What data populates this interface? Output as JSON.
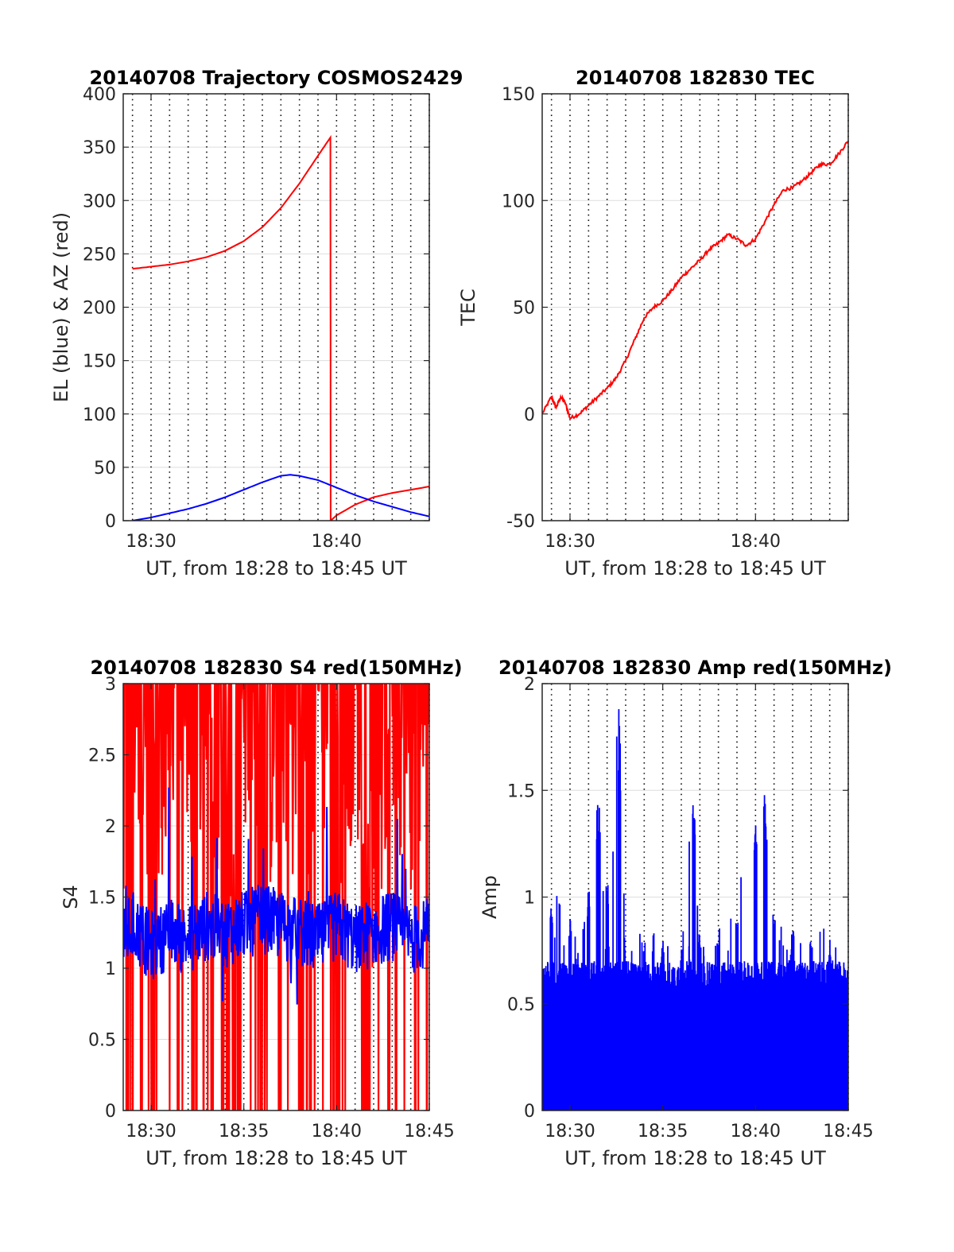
{
  "chart_data": [
    {
      "type": "line",
      "title": "20140708 Trajectory COSMOS2429",
      "xlabel": "UT, from 18:28 to 18:45 UT",
      "ylabel": "EL (blue) & AZ (red)",
      "xlim": [
        "18:28:30",
        "18:45:00"
      ],
      "ylim": [
        0,
        400
      ],
      "xticks": [
        "18:30",
        "18:40"
      ],
      "yticks": [
        0,
        50,
        100,
        150,
        200,
        250,
        300,
        350,
        400
      ],
      "grid": "dotted vertical lines every minute; horizontal lines at y ticks",
      "series": [
        {
          "color": "#ff0000",
          "x": [
            "18:29:00",
            "18:30:00",
            "18:31:00",
            "18:32:00",
            "18:33:00",
            "18:34:00",
            "18:35:00",
            "18:36:00",
            "18:37:00",
            "18:38:00",
            "18:39:00",
            "18:39:40",
            "18:39:41",
            "18:40:00",
            "18:41:00",
            "18:42:00",
            "18:43:00",
            "18:44:00",
            "18:45:00"
          ],
          "values": [
            236,
            238,
            240,
            243,
            247,
            253,
            262,
            275,
            293,
            316,
            342,
            359,
            0,
            5,
            15,
            22,
            26,
            29,
            32
          ]
        },
        {
          "color": "#0000ff",
          "x": [
            "18:29:00",
            "18:30:00",
            "18:31:00",
            "18:32:00",
            "18:33:00",
            "18:34:00",
            "18:35:00",
            "18:36:00",
            "18:37:00",
            "18:37:30",
            "18:38:00",
            "18:39:00",
            "18:40:00",
            "18:41:00",
            "18:42:00",
            "18:43:00",
            "18:44:00",
            "18:45:00"
          ],
          "values": [
            0,
            3,
            7,
            11,
            16,
            22,
            29,
            36,
            42,
            43,
            42,
            38,
            31,
            24,
            18,
            13,
            8,
            4
          ]
        }
      ]
    },
    {
      "type": "line",
      "title": "20140708 182830 TEC",
      "xlabel": "UT, from 18:28 to 18:45 UT",
      "ylabel": "TEC",
      "xlim": [
        "18:28:30",
        "18:45:00"
      ],
      "ylim": [
        -50,
        150
      ],
      "xticks": [
        "18:30",
        "18:40"
      ],
      "yticks": [
        -50,
        0,
        50,
        100,
        150
      ],
      "grid": "dotted vertical lines every minute; horizontal lines at y ticks",
      "series": [
        {
          "color": "#ff0000",
          "x": [
            "18:28:30",
            "18:29:00",
            "18:29:15",
            "18:29:30",
            "18:29:45",
            "18:30:00",
            "18:30:30",
            "18:31:00",
            "18:31:30",
            "18:32:00",
            "18:32:30",
            "18:33:00",
            "18:33:30",
            "18:34:00",
            "18:34:30",
            "18:35:00",
            "18:35:30",
            "18:36:00",
            "18:36:30",
            "18:37:00",
            "18:37:30",
            "18:38:00",
            "18:38:30",
            "18:39:00",
            "18:39:30",
            "18:40:00",
            "18:40:30",
            "18:41:00",
            "18:41:30",
            "18:42:00",
            "18:42:30",
            "18:43:00",
            "18:43:30",
            "18:44:00",
            "18:44:30",
            "18:45:00"
          ],
          "values": [
            0,
            8,
            3,
            8,
            5,
            -2,
            0,
            4,
            8,
            12,
            17,
            25,
            35,
            45,
            50,
            53,
            58,
            64,
            68,
            72,
            77,
            80,
            84,
            82,
            79,
            82,
            90,
            98,
            105,
            106,
            109,
            113,
            117,
            117,
            122,
            128
          ]
        }
      ]
    },
    {
      "type": "line",
      "title": "20140708 182830 S4 red(150MHz)",
      "xlabel": "UT, from 18:28 to 18:45 UT",
      "ylabel": "S4",
      "xlim": [
        "18:28:30",
        "18:45:00"
      ],
      "ylim": [
        0,
        3
      ],
      "xticks": [
        "18:30",
        "18:35",
        "18:40",
        "18:45"
      ],
      "yticks": [
        0,
        0.5,
        1,
        1.5,
        2,
        2.5,
        3
      ],
      "grid": "dotted vertical lines every minute; horizontal lines at y ticks",
      "series": [
        {
          "color": "#ff0000",
          "description_values": "dense noisy trace spanning 0 to above 3",
          "x": [
            "18:28:30",
            "18:29:00",
            "18:30:00",
            "18:31:00",
            "18:32:00",
            "18:33:00",
            "18:34:00",
            "18:35:00",
            "18:36:00",
            "18:37:00",
            "18:38:00",
            "18:39:00",
            "18:40:00",
            "18:41:00",
            "18:42:00",
            "18:43:00",
            "18:44:00",
            "18:45:00"
          ],
          "values": [
            2.5,
            3,
            2.3,
            2.8,
            2.2,
            3,
            1.8,
            3,
            2.1,
            3,
            2.2,
            3,
            2.4,
            3,
            1.9,
            3,
            2.5,
            3
          ]
        },
        {
          "color": "#0000ff",
          "x": [
            "18:28:30",
            "18:29:00",
            "18:30:00",
            "18:31:00",
            "18:32:00",
            "18:33:00",
            "18:34:00",
            "18:35:00",
            "18:36:00",
            "18:37:00",
            "18:38:00",
            "18:39:00",
            "18:40:00",
            "18:41:00",
            "18:42:00",
            "18:43:00",
            "18:44:00",
            "18:45:00"
          ],
          "values": [
            1.2,
            1.3,
            1.15,
            1.25,
            1.2,
            1.3,
            1.25,
            1.3,
            1.35,
            1.3,
            1.25,
            1.2,
            1.3,
            1.2,
            1.25,
            1.3,
            1.2,
            1.25
          ]
        }
      ]
    },
    {
      "type": "line",
      "title": "20140708 182830 Amp red(150MHz)",
      "xlabel": "UT, from 18:28 to 18:45 UT",
      "ylabel": "Amp",
      "xlim": [
        "18:28:30",
        "18:45:00"
      ],
      "ylim": [
        0,
        2
      ],
      "xticks": [
        "18:30",
        "18:35",
        "18:40",
        "18:45"
      ],
      "yticks": [
        0,
        0.5,
        1,
        1.5,
        2
      ],
      "grid": "dotted vertical lines every minute; horizontal lines at y ticks",
      "series": [
        {
          "color": "#0000ff",
          "x": [
            "18:28:30",
            "18:29:00",
            "18:30:00",
            "18:31:00",
            "18:31:30",
            "18:32:00",
            "18:32:40",
            "18:33:00",
            "18:34:00",
            "18:35:00",
            "18:36:00",
            "18:36:40",
            "18:37:00",
            "18:38:00",
            "18:39:00",
            "18:40:00",
            "18:40:30",
            "18:41:00",
            "18:42:00",
            "18:43:00",
            "18:44:00",
            "18:45:00"
          ],
          "values": [
            0.63,
            0.97,
            0.9,
            1.03,
            1.46,
            1.05,
            1.93,
            0.66,
            0.75,
            0.8,
            0.75,
            1.48,
            0.8,
            0.85,
            0.9,
            1.36,
            1.57,
            0.9,
            0.85,
            0.8,
            0.75,
            0.55
          ]
        }
      ]
    }
  ]
}
